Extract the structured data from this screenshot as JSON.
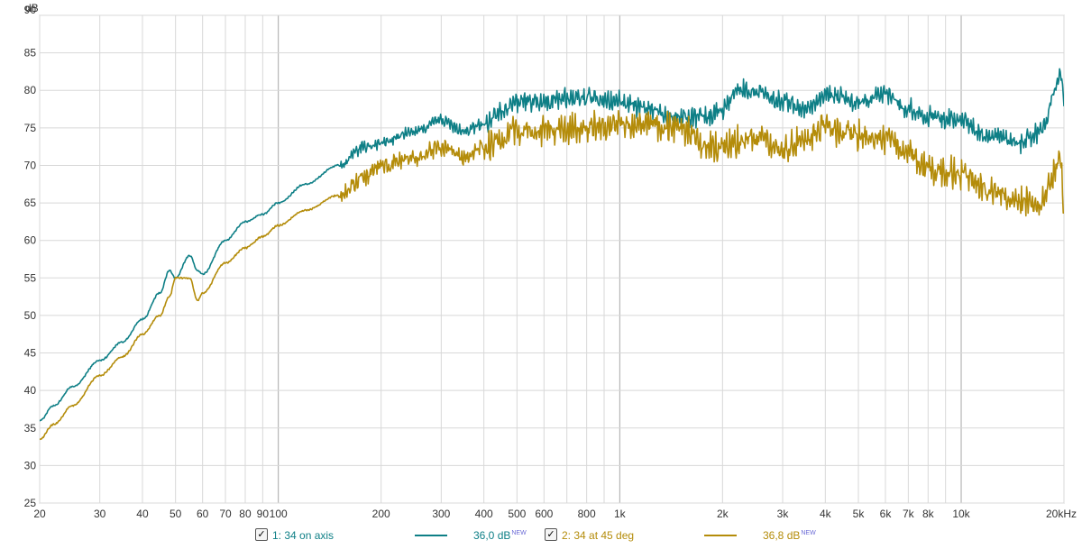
{
  "chart_data": {
    "type": "line",
    "xscale": "log",
    "xlim": [
      20,
      20000
    ],
    "ylim": [
      25,
      90
    ],
    "ylabel": "dB",
    "grid": true,
    "x_ticks": [
      {
        "v": 20,
        "t": "20"
      },
      {
        "v": 30,
        "t": "30"
      },
      {
        "v": 40,
        "t": "40"
      },
      {
        "v": 50,
        "t": "50"
      },
      {
        "v": 60,
        "t": "60"
      },
      {
        "v": 70,
        "t": "70"
      },
      {
        "v": 80,
        "t": "80"
      },
      {
        "v": 90,
        "t": "90"
      },
      {
        "v": 100,
        "t": "100"
      },
      {
        "v": 200,
        "t": "200"
      },
      {
        "v": 300,
        "t": "300"
      },
      {
        "v": 400,
        "t": "400"
      },
      {
        "v": 500,
        "t": "500"
      },
      {
        "v": 600,
        "t": "600"
      },
      {
        "v": 800,
        "t": "800"
      },
      {
        "v": 1000,
        "t": "1k"
      },
      {
        "v": 2000,
        "t": "2k"
      },
      {
        "v": 3000,
        "t": "3k"
      },
      {
        "v": 4000,
        "t": "4k"
      },
      {
        "v": 5000,
        "t": "5k"
      },
      {
        "v": 6000,
        "t": "6k"
      },
      {
        "v": 7000,
        "t": "7k"
      },
      {
        "v": 8000,
        "t": "8k"
      },
      {
        "v": 10000,
        "t": "10k"
      },
      {
        "v": 20000,
        "t": "20kHz"
      }
    ],
    "y_ticks": [
      25,
      30,
      35,
      40,
      45,
      50,
      55,
      60,
      65,
      70,
      75,
      80,
      85,
      90
    ],
    "series": [
      {
        "name": "1: 34 on axis",
        "level": "36,0 dB",
        "color": "#0e7f86",
        "ripple": 1.2,
        "points": [
          [
            20,
            36
          ],
          [
            22,
            38
          ],
          [
            25,
            40.5
          ],
          [
            30,
            44
          ],
          [
            35,
            46.5
          ],
          [
            40,
            49.5
          ],
          [
            45,
            53
          ],
          [
            48,
            56
          ],
          [
            50,
            55
          ],
          [
            55,
            58
          ],
          [
            58,
            56
          ],
          [
            60,
            55.5
          ],
          [
            70,
            60
          ],
          [
            80,
            62.5
          ],
          [
            90,
            63.5
          ],
          [
            100,
            65
          ],
          [
            120,
            67.5
          ],
          [
            150,
            70
          ],
          [
            180,
            72.5
          ],
          [
            200,
            73
          ],
          [
            250,
            74.5
          ],
          [
            300,
            76
          ],
          [
            350,
            74.5
          ],
          [
            400,
            75.5
          ],
          [
            450,
            77.5
          ],
          [
            500,
            78.5
          ],
          [
            600,
            78.5
          ],
          [
            700,
            79
          ],
          [
            800,
            79
          ],
          [
            900,
            78.5
          ],
          [
            1000,
            78.5
          ],
          [
            1200,
            77.5
          ],
          [
            1500,
            76.5
          ],
          [
            1800,
            76.5
          ],
          [
            2000,
            77.5
          ],
          [
            2200,
            80
          ],
          [
            2500,
            80
          ],
          [
            3000,
            78.5
          ],
          [
            3500,
            77.5
          ],
          [
            4000,
            79.5
          ],
          [
            4500,
            79
          ],
          [
            5000,
            78
          ],
          [
            6000,
            79.5
          ],
          [
            7000,
            77.5
          ],
          [
            8000,
            76.5
          ],
          [
            10000,
            76
          ],
          [
            12000,
            74
          ],
          [
            15000,
            73
          ],
          [
            17000,
            74.5
          ],
          [
            19000,
            80
          ],
          [
            19500,
            82
          ],
          [
            20000,
            79
          ]
        ]
      },
      {
        "name": "2: 34 at 45 deg",
        "level": "36,8 dB",
        "color": "#b48c0a",
        "ripple": 1.8,
        "points": [
          [
            20,
            33.5
          ],
          [
            22,
            35.5
          ],
          [
            25,
            38
          ],
          [
            30,
            42
          ],
          [
            35,
            44.5
          ],
          [
            40,
            47.5
          ],
          [
            45,
            50
          ],
          [
            48,
            52.5
          ],
          [
            50,
            55
          ],
          [
            55,
            55
          ],
          [
            58,
            52
          ],
          [
            60,
            53
          ],
          [
            70,
            57
          ],
          [
            80,
            59
          ],
          [
            90,
            60.5
          ],
          [
            100,
            62
          ],
          [
            120,
            64
          ],
          [
            150,
            66
          ],
          [
            180,
            68.5
          ],
          [
            200,
            70
          ],
          [
            250,
            71
          ],
          [
            300,
            72.5
          ],
          [
            350,
            71
          ],
          [
            400,
            72.5
          ],
          [
            450,
            73.5
          ],
          [
            500,
            74.5
          ],
          [
            600,
            74.5
          ],
          [
            700,
            75
          ],
          [
            800,
            75
          ],
          [
            900,
            75
          ],
          [
            1000,
            75.5
          ],
          [
            1200,
            75.5
          ],
          [
            1500,
            75
          ],
          [
            1800,
            72.5
          ],
          [
            2000,
            72.5
          ],
          [
            2500,
            74
          ],
          [
            3000,
            72
          ],
          [
            3500,
            73.5
          ],
          [
            4000,
            75
          ],
          [
            4500,
            74.5
          ],
          [
            5000,
            74
          ],
          [
            6000,
            73.5
          ],
          [
            7000,
            71.5
          ],
          [
            8000,
            69.5
          ],
          [
            10000,
            69
          ],
          [
            12000,
            66.5
          ],
          [
            15000,
            65
          ],
          [
            17000,
            65
          ],
          [
            19000,
            69
          ],
          [
            19500,
            71
          ],
          [
            20000,
            64
          ]
        ]
      }
    ]
  }
}
